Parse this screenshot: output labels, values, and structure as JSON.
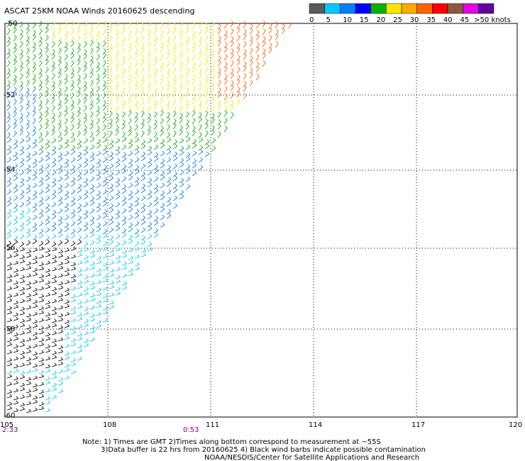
{
  "title": "ASCAT 25KM NOAA Winds 20160625 descending",
  "colorbar": {
    "bins": [
      "#5a5a5a",
      "#00c8ff",
      "#0080ff",
      "#0000ff",
      "#00b400",
      "#ffe600",
      "#ffaa00",
      "#ff6400",
      "#ff0000",
      "#8c5a3c",
      "#e600e6",
      "#6400a0"
    ],
    "labels": [
      "0",
      "5",
      "10",
      "15",
      "20",
      "25",
      "30",
      "35",
      "40",
      "45",
      ">50 knots"
    ]
  },
  "axes": {
    "lon_ticks": [
      "105",
      "108",
      "111",
      "114",
      "117",
      "120"
    ],
    "lat_ticks": [
      "-52",
      "-54",
      "-56",
      "-58",
      "-60"
    ],
    "lat_top": "-50"
  },
  "time_labels": [
    "2:33",
    "0:53"
  ],
  "notes": [
    "Note: 1) Times are GMT 2)Times along bottom correspond to measurement at ~55S",
    "3)Data buffer is 22 hrs from 20160625 4) Black wind barbs indicate possible contamination",
    "NOAA/NESDIS/Center for Satellite Applications and Research"
  ],
  "wind_field": {
    "zones": [
      {
        "region": "northwest",
        "color": "#0000ff"
      },
      {
        "region": "north-central",
        "color": "#00b400"
      },
      {
        "region": "north",
        "color": "#ffe600"
      },
      {
        "region": "northeast",
        "color": "#ff6400"
      },
      {
        "region": "central",
        "color": "#0080ff"
      },
      {
        "region": "south",
        "color": "#00c8ff"
      },
      {
        "region": "southwest",
        "color": "#000000"
      }
    ]
  }
}
